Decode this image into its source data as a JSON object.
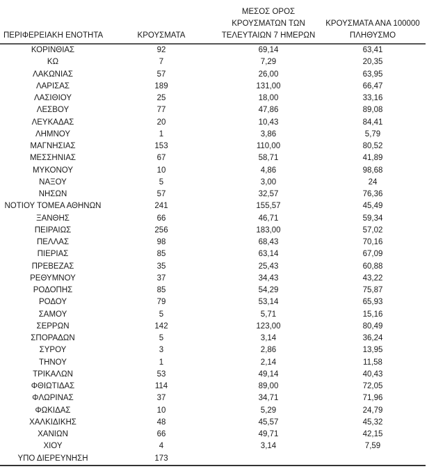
{
  "header": {
    "region": "ΠΕΡΙΦΕΡΕΙΑΚΗ ΕΝΟΤΗΤΑ",
    "cases": "ΚΡΟΥΣΜΑΤΑ",
    "avg_line1": "ΜΕΣΟΣ ΟΡΟΣ",
    "avg_line2": "ΚΡΟΥΣΜΑΤΩΝ ΤΩΝ",
    "avg_line3": "ΤΕΛΕΥΤΑΙΩΝ 7 ΗΜΕΡΩΝ",
    "per100k_line1": "ΚΡΟΥΣΜΑΤΑ ΑΝΑ 100000",
    "per100k_line2": "ΠΛΗΘΥΣΜΟ"
  },
  "rows": [
    [
      "ΚΟΡΙΝΘΙΑΣ",
      "92",
      "69,14",
      "63,41"
    ],
    [
      "ΚΩ",
      "7",
      "7,29",
      "20,35"
    ],
    [
      "ΛΑΚΩΝΙΑΣ",
      "57",
      "26,00",
      "63,95"
    ],
    [
      "ΛΑΡΙΣΑΣ",
      "189",
      "131,00",
      "66,47"
    ],
    [
      "ΛΑΣΙΘΙΟΥ",
      "25",
      "18,00",
      "33,16"
    ],
    [
      "ΛΕΣΒΟΥ",
      "77",
      "47,86",
      "89,08"
    ],
    [
      "ΛΕΥΚΑΔΑΣ",
      "20",
      "10,43",
      "84,41"
    ],
    [
      "ΛΗΜΝΟΥ",
      "1",
      "3,86",
      "5,79"
    ],
    [
      "ΜΑΓΝΗΣΙΑΣ",
      "153",
      "110,00",
      "80,52"
    ],
    [
      "ΜΕΣΣΗΝΙΑΣ",
      "67",
      "58,71",
      "41,89"
    ],
    [
      "ΜΥΚΟΝΟΥ",
      "10",
      "4,86",
      "98,68"
    ],
    [
      "ΝΑΞΟΥ",
      "5",
      "3,00",
      "24"
    ],
    [
      "ΝΗΣΩΝ",
      "57",
      "32,57",
      "76,36"
    ],
    [
      "ΝΟΤΙΟΥ ΤΟΜΕΑ ΑΘΗΝΩΝ",
      "241",
      "155,57",
      "45,49"
    ],
    [
      "ΞΑΝΘΗΣ",
      "66",
      "46,71",
      "59,34"
    ],
    [
      "ΠΕΙΡΑΙΩΣ",
      "256",
      "183,00",
      "57,02"
    ],
    [
      "ΠΕΛΛΑΣ",
      "98",
      "68,43",
      "70,16"
    ],
    [
      "ΠΙΕΡΙΑΣ",
      "85",
      "63,14",
      "67,09"
    ],
    [
      "ΠΡΕΒΕΖΑΣ",
      "35",
      "25,43",
      "60,88"
    ],
    [
      "ΡΕΘΥΜΝΟΥ",
      "37",
      "34,43",
      "43,22"
    ],
    [
      "ΡΟΔΟΠΗΣ",
      "85",
      "54,29",
      "75,87"
    ],
    [
      "ΡΟΔΟΥ",
      "79",
      "53,14",
      "65,93"
    ],
    [
      "ΣΑΜΟΥ",
      "5",
      "5,71",
      "15,16"
    ],
    [
      "ΣΕΡΡΩΝ",
      "142",
      "123,00",
      "80,49"
    ],
    [
      "ΣΠΟΡΑΔΩΝ",
      "5",
      "3,14",
      "36,24"
    ],
    [
      "ΣΥΡΟΥ",
      "3",
      "2,86",
      "13,95"
    ],
    [
      "ΤΗΝΟΥ",
      "1",
      "2,14",
      "11,58"
    ],
    [
      "ΤΡΙΚΑΛΩΝ",
      "53",
      "49,14",
      "40,43"
    ],
    [
      "ΦΘΙΩΤΙΔΑΣ",
      "114",
      "89,00",
      "72,05"
    ],
    [
      "ΦΛΩΡΙΝΑΣ",
      "37",
      "34,71",
      "71,96"
    ],
    [
      "ΦΩΚΙΔΑΣ",
      "10",
      "5,29",
      "24,79"
    ],
    [
      "ΧΑΛΚΙΔΙΚΗΣ",
      "48",
      "45,57",
      "45,32"
    ],
    [
      "ΧΑΝΙΩΝ",
      "66",
      "49,71",
      "42,15"
    ],
    [
      "ΧΙΟΥ",
      "4",
      "3,14",
      "7,59"
    ],
    [
      "ΥΠΟ ΔΙΕΡΕΥΝΗΣΗ",
      "173",
      "",
      ""
    ]
  ]
}
